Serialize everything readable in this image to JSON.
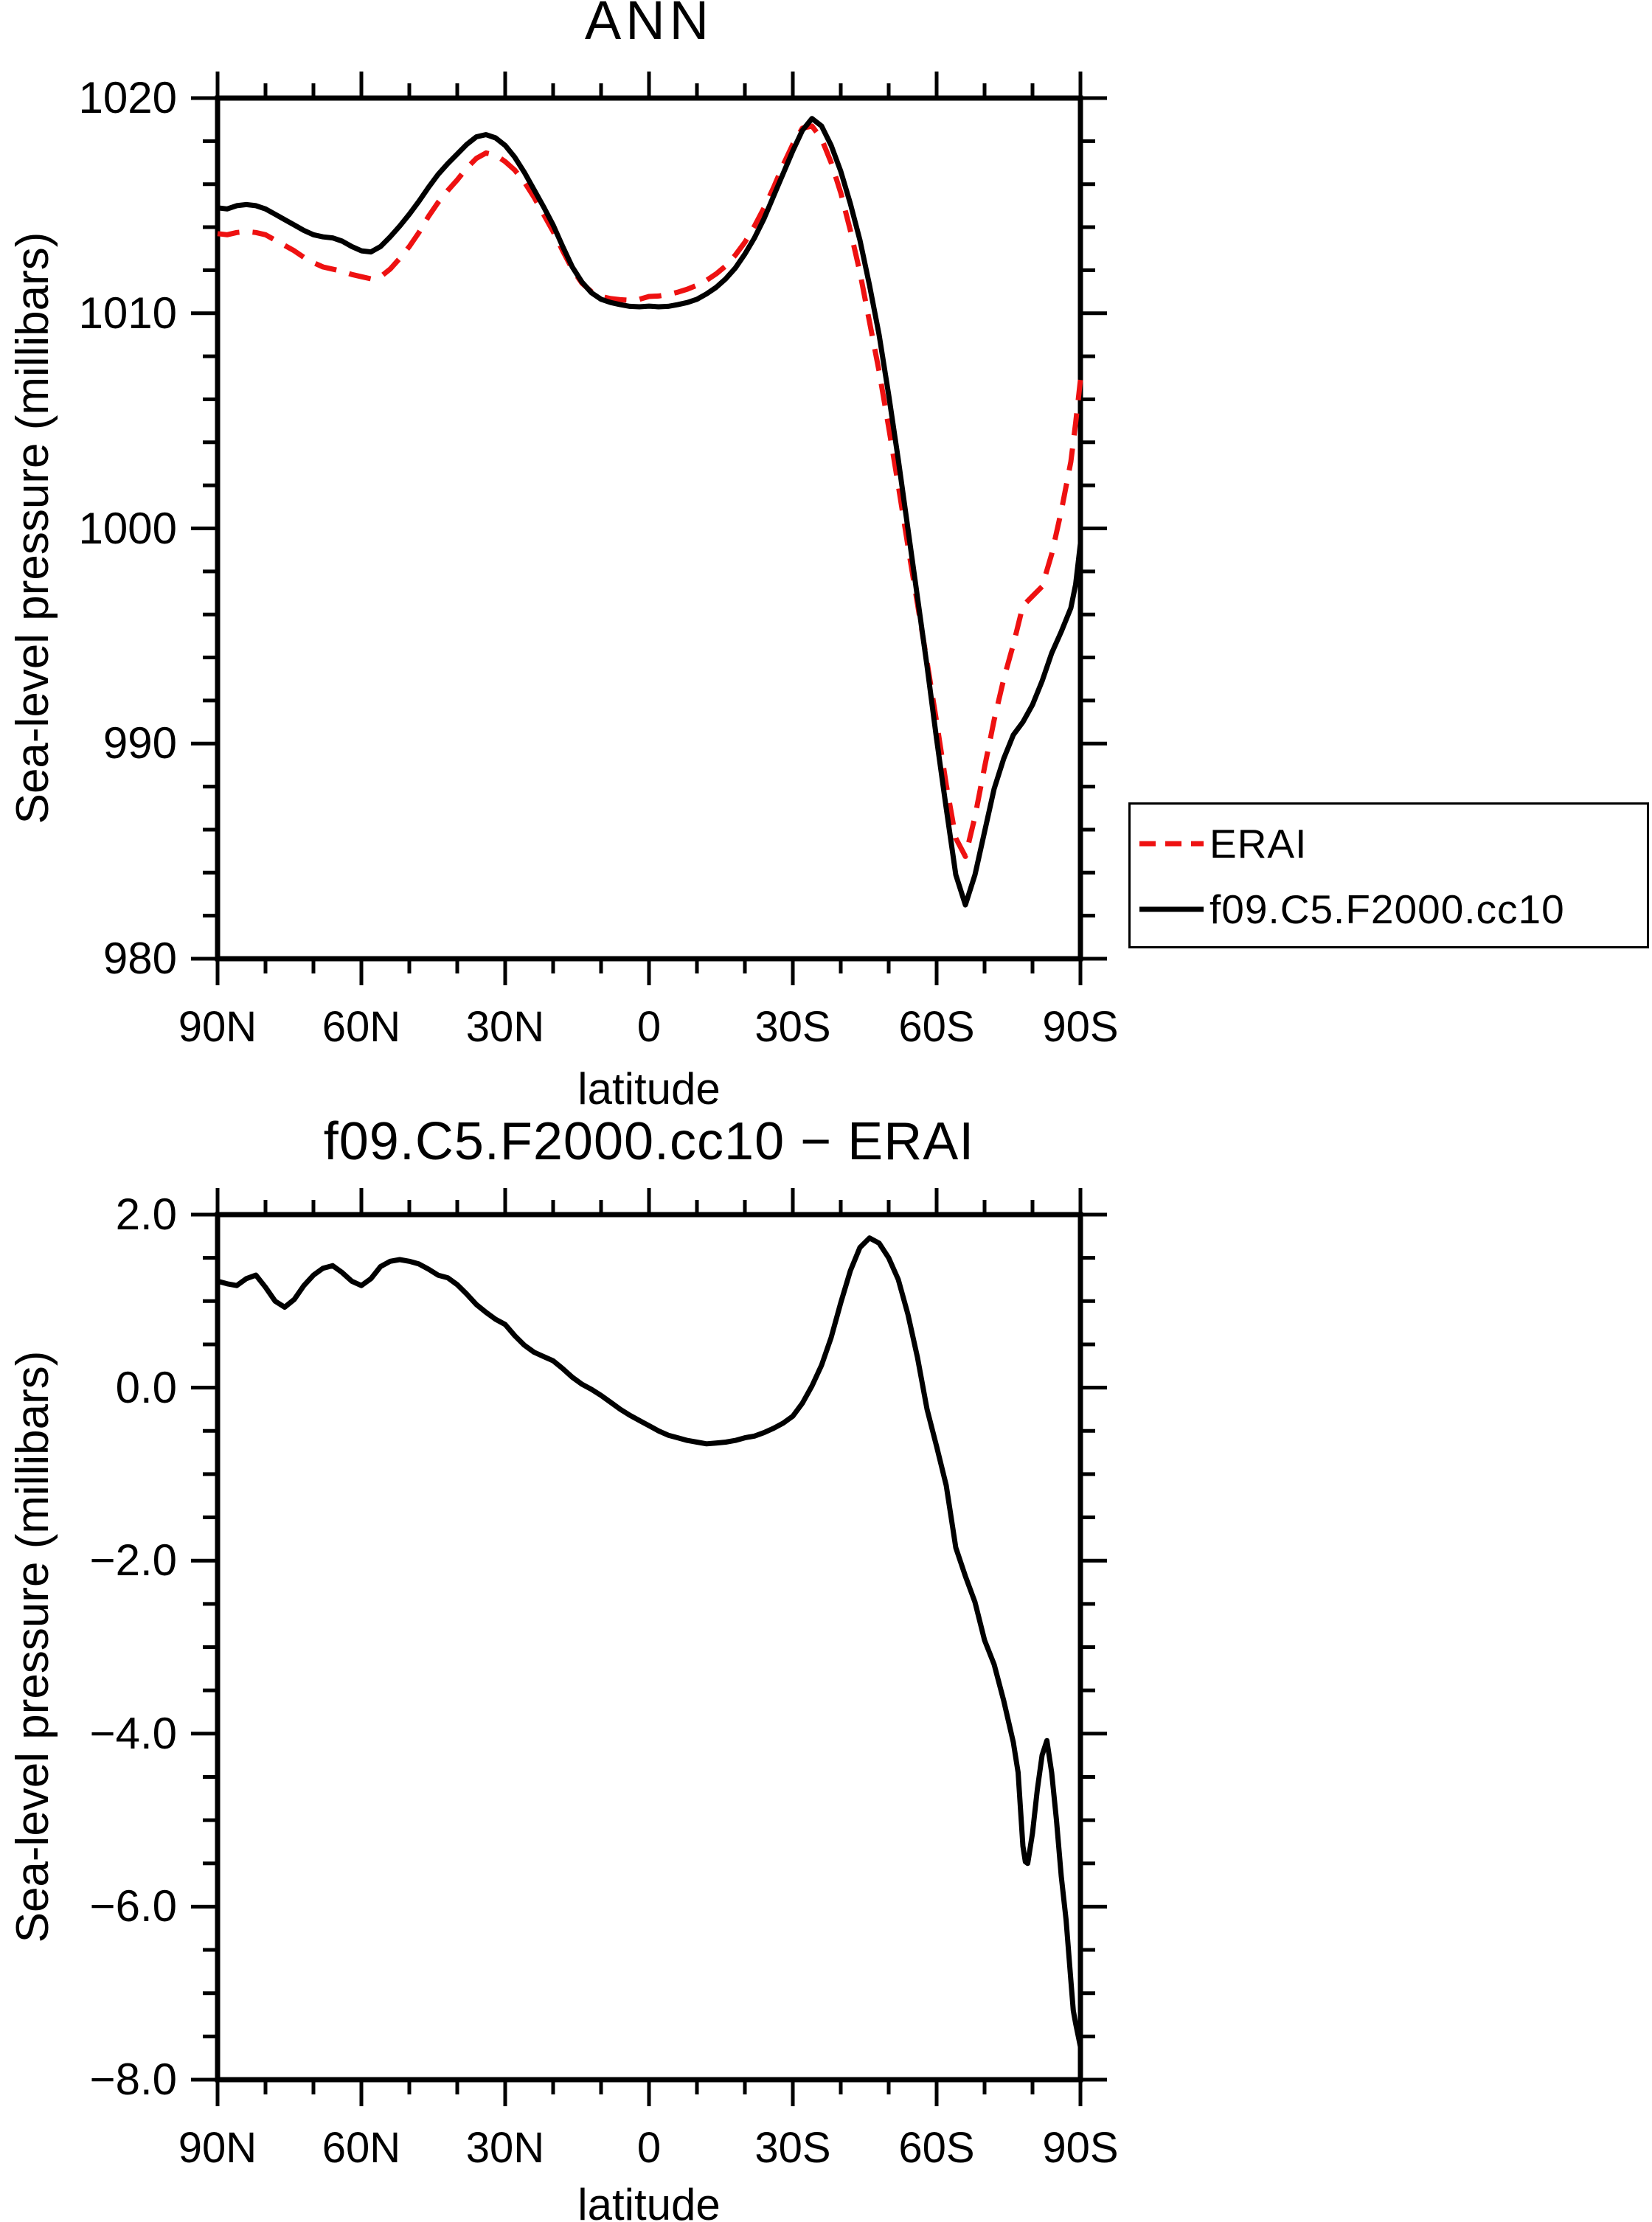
{
  "page_background": "#ffffff",
  "accent_red": "#ee1111",
  "line_black": "#000000",
  "chart_data": [
    {
      "type": "line",
      "title": "ANN",
      "xlabel": "latitude",
      "ylabel": "Sea-level pressure (millibars)",
      "xlim": [
        90,
        -90
      ],
      "ylim": [
        980,
        1020
      ],
      "grid": false,
      "legend_position": "right-outside",
      "xticks_major": [
        90,
        60,
        30,
        0,
        -30,
        -60,
        -90
      ],
      "xtick_labels": [
        "90N",
        "60N",
        "30N",
        "0",
        "30S",
        "60S",
        "90S"
      ],
      "xticks_minor": [
        80,
        70,
        50,
        40,
        20,
        10,
        -10,
        -20,
        -40,
        -50,
        -70,
        -80
      ],
      "yticks_major": [
        1020,
        1010,
        1000,
        990,
        980
      ],
      "ytick_labels": [
        "1020",
        "1010",
        "1000",
        "990",
        "980"
      ],
      "yticks_minor": [
        1018,
        1016,
        1014,
        1012,
        1008,
        1006,
        1004,
        1002,
        998,
        996,
        994,
        992,
        988,
        986,
        984,
        982
      ],
      "series": [
        {
          "name": "ERAI",
          "color": "#ee1111",
          "dashed": true,
          "x": [
            90,
            88,
            86,
            84,
            82,
            80,
            78,
            76,
            74,
            72,
            70,
            68,
            66,
            64,
            62,
            60,
            58,
            56,
            54,
            52,
            50,
            48,
            46,
            44,
            42,
            40,
            38,
            36,
            34,
            32,
            30,
            28,
            26,
            24,
            22,
            20,
            18,
            16,
            14,
            12,
            10,
            8,
            6,
            4,
            2,
            0,
            -2,
            -4,
            -6,
            -8,
            -10,
            -12,
            -14,
            -16,
            -18,
            -20,
            -22,
            -24,
            -26,
            -28,
            -30,
            -32,
            -34,
            -36,
            -38,
            -40,
            -42,
            -44,
            -46,
            -48,
            -50,
            -52,
            -54,
            -56,
            -58,
            -60,
            -62,
            -64,
            -66,
            -68,
            -70,
            -72,
            -74,
            -76,
            -78,
            -80,
            -82,
            -84,
            -86,
            -88,
            -89,
            -90
          ],
          "y": [
            1013.7,
            1013.65,
            1013.75,
            1013.8,
            1013.75,
            1013.65,
            1013.4,
            1013.15,
            1012.9,
            1012.6,
            1012.35,
            1012.15,
            1012.05,
            1011.95,
            1011.8,
            1011.7,
            1011.6,
            1011.7,
            1012.05,
            1012.55,
            1013.1,
            1013.75,
            1014.5,
            1015.15,
            1015.7,
            1016.2,
            1016.75,
            1017.2,
            1017.45,
            1017.35,
            1017.05,
            1016.65,
            1016.1,
            1015.4,
            1014.6,
            1013.8,
            1012.9,
            1012.05,
            1011.4,
            1011.0,
            1010.78,
            1010.68,
            1010.63,
            1010.6,
            1010.65,
            1010.78,
            1010.8,
            1010.87,
            1010.98,
            1011.12,
            1011.3,
            1011.53,
            1011.83,
            1012.2,
            1012.7,
            1013.3,
            1014.05,
            1014.9,
            1015.85,
            1016.9,
            1017.85,
            1018.6,
            1018.7,
            1018.1,
            1017.0,
            1015.6,
            1013.85,
            1011.9,
            1009.6,
            1007.3,
            1004.7,
            1002.0,
            999.2,
            996.5,
            993.8,
            991.0,
            988.1,
            985.6,
            984.75,
            986.6,
            988.9,
            991.1,
            993.0,
            994.6,
            996.4,
            996.85,
            997.3,
            998.8,
            1000.8,
            1003.1,
            1004.9,
            1006.9
          ]
        },
        {
          "name": "f09.C5.F2000.cc10",
          "color": "#000000",
          "dashed": false,
          "x": [
            90,
            88,
            86,
            84,
            82,
            80,
            78,
            76,
            74,
            72,
            70,
            68,
            66,
            64,
            62,
            60,
            58,
            56,
            54,
            52,
            50,
            48,
            46,
            44,
            42,
            40,
            38,
            36,
            34,
            32,
            30,
            28,
            26,
            24,
            22,
            20,
            18,
            16,
            14,
            12,
            10,
            8,
            6,
            4,
            2,
            0,
            -2,
            -4,
            -6,
            -8,
            -10,
            -12,
            -14,
            -16,
            -18,
            -20,
            -22,
            -24,
            -26,
            -28,
            -30,
            -32,
            -34,
            -36,
            -38,
            -40,
            -42,
            -44,
            -46,
            -48,
            -50,
            -52,
            -54,
            -56,
            -58,
            -60,
            -62,
            -64,
            -66,
            -68,
            -70,
            -72,
            -74,
            -76,
            -78,
            -80,
            -82,
            -84,
            -86,
            -88,
            -89,
            -90
          ],
          "y": [
            1014.9,
            1014.85,
            1015.0,
            1015.05,
            1015.0,
            1014.85,
            1014.6,
            1014.35,
            1014.1,
            1013.85,
            1013.65,
            1013.55,
            1013.5,
            1013.35,
            1013.1,
            1012.9,
            1012.85,
            1013.1,
            1013.55,
            1014.05,
            1014.6,
            1015.2,
            1015.85,
            1016.45,
            1016.95,
            1017.4,
            1017.85,
            1018.2,
            1018.3,
            1018.15,
            1017.8,
            1017.25,
            1016.55,
            1015.75,
            1014.95,
            1014.1,
            1013.1,
            1012.15,
            1011.45,
            1010.95,
            1010.65,
            1010.5,
            1010.4,
            1010.32,
            1010.3,
            1010.33,
            1010.3,
            1010.32,
            1010.4,
            1010.5,
            1010.65,
            1010.9,
            1011.2,
            1011.6,
            1012.1,
            1012.75,
            1013.5,
            1014.4,
            1015.45,
            1016.5,
            1017.55,
            1018.5,
            1019.05,
            1018.7,
            1017.8,
            1016.6,
            1015.1,
            1013.4,
            1011.3,
            1009.0,
            1006.2,
            1003.2,
            1000.0,
            996.8,
            993.6,
            990.2,
            987.0,
            983.9,
            982.5,
            983.9,
            985.9,
            987.9,
            989.3,
            990.4,
            991.0,
            991.8,
            992.9,
            994.2,
            995.2,
            996.3,
            997.4,
            999.3
          ]
        }
      ]
    },
    {
      "type": "line",
      "title": "f09.C5.F2000.cc10 − ERAI",
      "xlabel": "latitude",
      "ylabel": "Sea-level pressure (millibars)",
      "xlim": [
        90,
        -90
      ],
      "ylim": [
        -8,
        2
      ],
      "grid": false,
      "xticks_major": [
        90,
        60,
        30,
        0,
        -30,
        -60,
        -90
      ],
      "xtick_labels": [
        "90N",
        "60N",
        "30N",
        "0",
        "30S",
        "60S",
        "90S"
      ],
      "xticks_minor": [
        80,
        70,
        50,
        40,
        20,
        10,
        -10,
        -20,
        -40,
        -50,
        -70,
        -80
      ],
      "yticks_major": [
        2.0,
        0.0,
        -2.0,
        -4.0,
        -6.0,
        -8.0
      ],
      "ytick_labels": [
        "2.0",
        "0.0",
        "−2.0",
        "−4.0",
        "−6.0",
        "−8.0"
      ],
      "yticks_minor": [
        1.5,
        1.0,
        0.5,
        -0.5,
        -1.0,
        -1.5,
        -2.5,
        -3.0,
        -3.5,
        -4.5,
        -5.0,
        -5.5,
        -6.5,
        -7.0,
        -7.5
      ],
      "series": [
        {
          "name": "f09.C5.F2000.cc10 - ERAI",
          "color": "#000000",
          "dashed": false,
          "x": [
            90,
            88,
            86,
            84,
            82,
            80,
            78,
            76,
            74,
            72,
            70,
            68,
            66,
            64,
            62,
            60,
            58,
            56,
            54,
            52,
            50,
            48,
            46,
            44,
            42,
            40,
            38,
            36,
            34,
            32,
            30,
            28,
            26,
            24,
            22,
            20,
            18,
            16,
            14,
            12,
            10,
            8,
            6,
            4,
            2,
            0,
            -2,
            -4,
            -6,
            -8,
            -10,
            -12,
            -14,
            -16,
            -18,
            -20,
            -22,
            -24,
            -26,
            -28,
            -30,
            -32,
            -34,
            -36,
            -38,
            -40,
            -42,
            -44,
            -46,
            -48,
            -50,
            -52,
            -54,
            -56,
            -58,
            -60,
            -62,
            -64,
            -66,
            -68,
            -70,
            -72,
            -74,
            -76,
            -77,
            -78,
            -78.5,
            -79,
            -80,
            -81,
            -82,
            -83,
            -84,
            -85,
            -86,
            -87,
            -88,
            -88.5,
            -89,
            -90
          ],
          "y": [
            1.23,
            1.2,
            1.18,
            1.26,
            1.3,
            1.16,
            1.0,
            0.93,
            1.02,
            1.18,
            1.3,
            1.38,
            1.41,
            1.33,
            1.23,
            1.18,
            1.26,
            1.4,
            1.46,
            1.48,
            1.46,
            1.43,
            1.37,
            1.3,
            1.27,
            1.19,
            1.08,
            0.96,
            0.87,
            0.79,
            0.73,
            0.6,
            0.49,
            0.41,
            0.36,
            0.31,
            0.22,
            0.12,
            0.04,
            -0.02,
            -0.09,
            -0.17,
            -0.25,
            -0.32,
            -0.38,
            -0.44,
            -0.5,
            -0.55,
            -0.58,
            -0.61,
            -0.63,
            -0.65,
            -0.64,
            -0.63,
            -0.61,
            -0.58,
            -0.56,
            -0.52,
            -0.47,
            -0.41,
            -0.33,
            -0.18,
            0.02,
            0.26,
            0.58,
            0.98,
            1.35,
            1.62,
            1.73,
            1.67,
            1.5,
            1.25,
            0.85,
            0.35,
            -0.25,
            -0.68,
            -1.13,
            -1.85,
            -2.18,
            -2.48,
            -2.92,
            -3.2,
            -3.62,
            -4.1,
            -4.45,
            -5.3,
            -5.48,
            -5.5,
            -5.15,
            -4.65,
            -4.25,
            -4.08,
            -4.45,
            -5.0,
            -5.65,
            -6.15,
            -6.85,
            -7.2,
            -7.35,
            -7.62
          ]
        }
      ]
    }
  ]
}
